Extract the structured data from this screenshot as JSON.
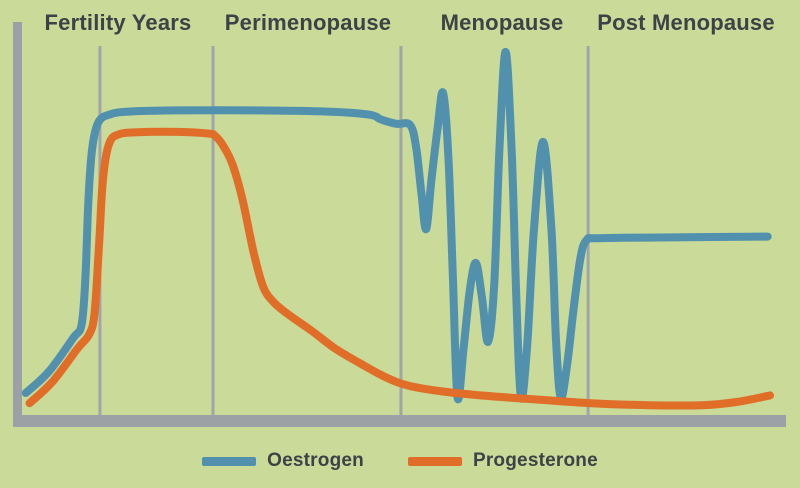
{
  "colors": {
    "background": "#c9da99",
    "axis_gray": "#9ca1a5",
    "divider_gray": "#a0a5a8",
    "text": "#3c4347",
    "oestrogen_blue": "#5191ae",
    "progesterone_orange": "#e06e28"
  },
  "legend": {
    "items": [
      {
        "label": "Oestrogen",
        "color": "#5191ae"
      },
      {
        "label": "Progesterone",
        "color": "#e06e28"
      }
    ]
  },
  "chart_data": {
    "type": "line",
    "title": "",
    "xlabel": "",
    "ylabel": "",
    "x_axis_note": "life-stage timeline, no numeric ticks",
    "y_axis_note": "relative hormone level, no numeric ticks",
    "legend_position": "bottom",
    "grid": false,
    "categories": [
      "Fertility Years",
      "Perimenopause",
      "Menopause",
      "Post Menopause"
    ],
    "stages": [
      {
        "label": "Fertility Years",
        "center_pct": 14.75
      },
      {
        "label": "Perimenopause",
        "center_pct": 38.5
      },
      {
        "label": "Menopause",
        "center_pct": 62.75
      },
      {
        "label": "Post Menopause",
        "center_pct": 85.75
      }
    ],
    "dividers_pct": [
      10.2,
      25.0,
      49.6,
      74.1
    ],
    "series": [
      {
        "name": "Oestrogen",
        "color": "#5191ae",
        "points_pct": [
          [
            0.5,
            5.6
          ],
          [
            3.5,
            11
          ],
          [
            6.7,
            19.6
          ],
          [
            7.8,
            23
          ],
          [
            8.3,
            35
          ],
          [
            8.7,
            55
          ],
          [
            9.2,
            68
          ],
          [
            10,
            74.5
          ],
          [
            11.5,
            76.5
          ],
          [
            14,
            77.2
          ],
          [
            20,
            77.5
          ],
          [
            30,
            77.5
          ],
          [
            40,
            77.2
          ],
          [
            45.5,
            76.4
          ],
          [
            47,
            75.2
          ],
          [
            49,
            74.1
          ],
          [
            50.8,
            73.8
          ],
          [
            51.6,
            68
          ],
          [
            52.3,
            56
          ],
          [
            52.9,
            47.3
          ],
          [
            53.6,
            60
          ],
          [
            54.4,
            73
          ],
          [
            55.1,
            82
          ],
          [
            55.8,
            66
          ],
          [
            56.4,
            35
          ],
          [
            57,
            4.5
          ],
          [
            57.8,
            17
          ],
          [
            58.6,
            31.5
          ],
          [
            59.4,
            38.7
          ],
          [
            60.2,
            30
          ],
          [
            61,
            18.6
          ],
          [
            61.8,
            33
          ],
          [
            62.5,
            68
          ],
          [
            63.3,
            92.4
          ],
          [
            64.1,
            67
          ],
          [
            64.7,
            30
          ],
          [
            65.3,
            4.5
          ],
          [
            66.1,
            17
          ],
          [
            67,
            47
          ],
          [
            68.2,
            69.5
          ],
          [
            69.3,
            47
          ],
          [
            69.9,
            19
          ],
          [
            70.5,
            4.5
          ],
          [
            71.3,
            12
          ],
          [
            72.2,
            27
          ],
          [
            73.1,
            40
          ],
          [
            73.9,
            44.5
          ],
          [
            75.5,
            45
          ],
          [
            85,
            45.2
          ],
          [
            97.6,
            45.4
          ]
        ]
      },
      {
        "name": "Progesterone",
        "color": "#e06e28",
        "points_pct": [
          [
            1,
            3
          ],
          [
            4,
            8.5
          ],
          [
            7.3,
            17
          ],
          [
            8.8,
            20.5
          ],
          [
            9.5,
            26
          ],
          [
            10.1,
            44
          ],
          [
            10.6,
            60
          ],
          [
            11.4,
            69
          ],
          [
            12.8,
            71.5
          ],
          [
            16,
            72
          ],
          [
            21,
            72
          ],
          [
            24.5,
            71.6
          ],
          [
            25.3,
            71
          ],
          [
            26.4,
            68.3
          ],
          [
            27.6,
            63.5
          ],
          [
            28.9,
            54.5
          ],
          [
            30.3,
            41.5
          ],
          [
            31.6,
            32.5
          ],
          [
            33,
            28.6
          ],
          [
            35,
            25.4
          ],
          [
            38,
            21.3
          ],
          [
            41,
            16.9
          ],
          [
            44.2,
            13.2
          ],
          [
            47.5,
            9.7
          ],
          [
            50.5,
            7.5
          ],
          [
            55,
            6
          ],
          [
            60,
            5
          ],
          [
            67,
            4
          ],
          [
            74.5,
            3
          ],
          [
            82,
            2.5
          ],
          [
            89,
            2.5
          ],
          [
            93.5,
            3.3
          ],
          [
            97.9,
            5
          ]
        ]
      }
    ]
  }
}
